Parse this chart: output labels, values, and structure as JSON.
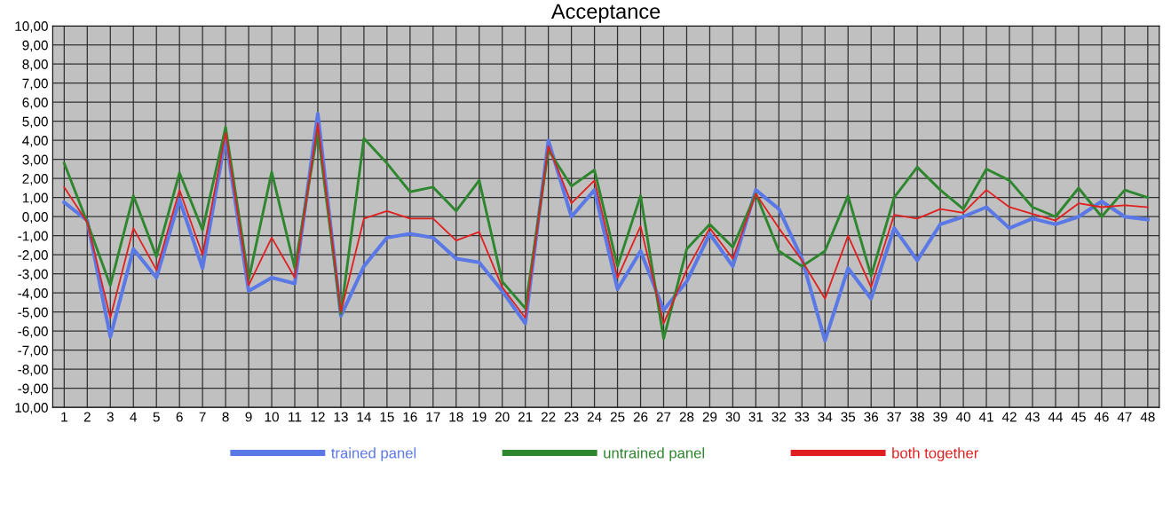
{
  "chart_data": {
    "type": "line",
    "title": "Acceptance",
    "categories": [
      "1",
      "2",
      "3",
      "4",
      "5",
      "6",
      "7",
      "8",
      "9",
      "10",
      "11",
      "12",
      "13",
      "14",
      "15",
      "16",
      "17",
      "18",
      "19",
      "20",
      "21",
      "22",
      "23",
      "24",
      "25",
      "26",
      "27",
      "28",
      "29",
      "30",
      "31",
      "32",
      "33",
      "34",
      "35",
      "36",
      "37",
      "38",
      "39",
      "40",
      "41",
      "42",
      "43",
      "44",
      "45",
      "46",
      "47",
      "48"
    ],
    "series": [
      {
        "name": "trained panel",
        "color": "#5a78e6",
        "values": [
          0.75,
          -0.2,
          -6.3,
          -1.7,
          -3.2,
          0.9,
          -2.7,
          4.2,
          -3.9,
          -3.2,
          -3.5,
          5.4,
          -5.2,
          -2.6,
          -1.1,
          -0.9,
          -1.1,
          -2.2,
          -2.4,
          -3.9,
          -5.6,
          4.0,
          0.0,
          1.4,
          -3.8,
          -1.8,
          -4.9,
          -3.4,
          -0.9,
          -2.6,
          1.4,
          0.4,
          -2.2,
          -6.5,
          -2.7,
          -4.3,
          -0.6,
          -2.3,
          -0.4,
          0.0,
          0.5,
          -0.6,
          -0.1,
          -0.4,
          0.0,
          0.8,
          0.0,
          -0.15
        ]
      },
      {
        "name": "untrained panel",
        "color": "#2e862e",
        "values": [
          2.8,
          -0.3,
          -3.6,
          1.1,
          -2.1,
          2.3,
          -0.7,
          4.7,
          -3.3,
          2.35,
          -2.7,
          4.5,
          -5.1,
          4.1,
          2.8,
          1.3,
          1.55,
          0.3,
          1.9,
          -3.4,
          -4.8,
          3.5,
          1.6,
          2.45,
          -2.6,
          1.1,
          -6.4,
          -1.7,
          -0.4,
          -1.6,
          1.2,
          -1.8,
          -2.6,
          -1.8,
          1.1,
          -3.1,
          1.0,
          2.6,
          1.4,
          0.4,
          2.5,
          1.9,
          0.5,
          0.0,
          1.5,
          0.0,
          1.4,
          1.0
        ]
      },
      {
        "name": "both together",
        "color": "#e02020",
        "values": [
          1.55,
          -0.3,
          -5.3,
          -0.6,
          -2.8,
          1.4,
          -2.0,
          4.4,
          -3.6,
          -1.1,
          -3.2,
          4.9,
          -5.0,
          -0.1,
          0.3,
          -0.1,
          -0.1,
          -1.25,
          -0.8,
          -3.7,
          -5.3,
          3.7,
          0.7,
          1.9,
          -3.2,
          -0.5,
          -5.6,
          -2.8,
          -0.6,
          -2.2,
          1.2,
          -0.6,
          -2.3,
          -4.3,
          -1.0,
          -3.7,
          0.1,
          -0.1,
          0.4,
          0.2,
          1.4,
          0.5,
          0.15,
          -0.2,
          0.7,
          0.5,
          0.6,
          0.5
        ]
      }
    ],
    "ylim": [
      -10,
      10
    ],
    "yticks": [
      {
        "value": 10,
        "label": "10,00"
      },
      {
        "value": 9,
        "label": "9,00"
      },
      {
        "value": 8,
        "label": "8,00"
      },
      {
        "value": 7,
        "label": "7,00"
      },
      {
        "value": 6,
        "label": "6,00"
      },
      {
        "value": 5,
        "label": "5,00"
      },
      {
        "value": 4,
        "label": "4,00"
      },
      {
        "value": 3,
        "label": "3,00"
      },
      {
        "value": 2,
        "label": "2,00"
      },
      {
        "value": 1,
        "label": "1,00"
      },
      {
        "value": 0,
        "label": "0,00"
      },
      {
        "value": -1,
        "label": "-1,00"
      },
      {
        "value": -2,
        "label": "-2,00"
      },
      {
        "value": -3,
        "label": "-3,00"
      },
      {
        "value": -4,
        "label": "-4,00"
      },
      {
        "value": -5,
        "label": "-5,00"
      },
      {
        "value": -6,
        "label": "-6,00"
      },
      {
        "value": -7,
        "label": "-7,00"
      },
      {
        "value": -8,
        "label": "-8,00"
      },
      {
        "value": -9,
        "label": "-9,00"
      },
      {
        "value": -10,
        "label": "10,00"
      }
    ],
    "grid": true,
    "legend": "bottom",
    "marker": "none",
    "line_style": "solid"
  }
}
